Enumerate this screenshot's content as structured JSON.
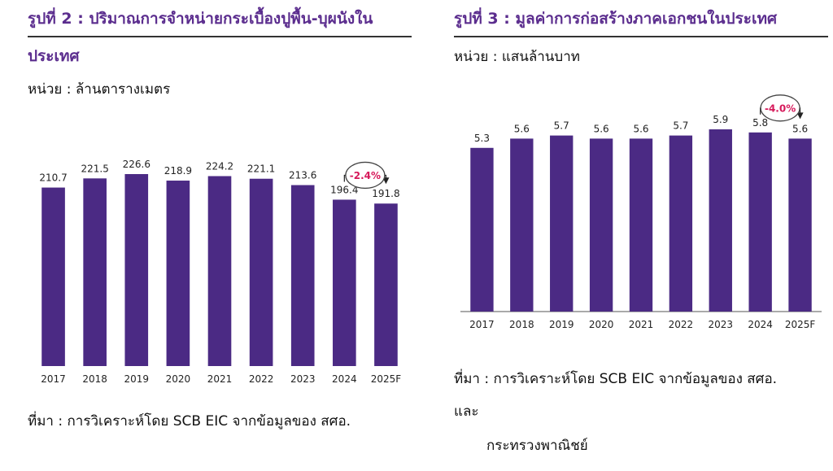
{
  "left": {
    "title_line1": "รูปที่ 2 : ปริมาณการจำหน่ายกระเบื้องปูพื้น-บุผนังใน",
    "title_line2": "ประเทศ",
    "unit": "หน่วย : ล้านตารางเมตร",
    "source": "ที่มา : การวิเคราะห์โดย SCB EIC จากข้อมูลของ สศอ."
  },
  "right": {
    "title": "รูปที่ 3 : มูลค่าการก่อสร้างภาคเอกชนในประเทศ",
    "unit": "หน่วย : แสนล้านบาท",
    "source_line1": "ที่มา : การวิเคราะห์โดย SCB EIC จากข้อมูลของ สศอ.",
    "source_line2": "และ",
    "source_line3": "กระทรวงพาณิชย์"
  },
  "colors": {
    "bar": "#4b2a84",
    "annotation_red": "#d6195a",
    "title": "#5b2d8e"
  },
  "chart_data": [
    {
      "type": "bar",
      "categories": [
        "2017",
        "2018",
        "2019",
        "2020",
        "2021",
        "2022",
        "2023",
        "2024",
        "2025F"
      ],
      "values": [
        210.7,
        221.5,
        226.6,
        218.9,
        224.2,
        221.1,
        213.6,
        196.4,
        191.8
      ],
      "value_labels": [
        "210.7",
        "221.5",
        "226.6",
        "218.9",
        "224.2",
        "221.1",
        "213.6",
        "196.4",
        "191.8"
      ],
      "annotation": {
        "text": "-2.4%",
        "from": "2024",
        "to": "2025F"
      },
      "legend": "none",
      "grid": false
    },
    {
      "type": "bar",
      "categories": [
        "2017",
        "2018",
        "2019",
        "2020",
        "2021",
        "2022",
        "2023",
        "2024",
        "2025F"
      ],
      "values": [
        5.3,
        5.6,
        5.7,
        5.6,
        5.6,
        5.7,
        5.9,
        5.8,
        5.6
      ],
      "value_labels": [
        "5.3",
        "5.6",
        "5.7",
        "5.6",
        "5.6",
        "5.7",
        "5.9",
        "5.8",
        "5.6"
      ],
      "annotation": {
        "text": "-4.0%",
        "from": "2024",
        "to": "2025F"
      },
      "legend": "none",
      "grid": false
    }
  ]
}
